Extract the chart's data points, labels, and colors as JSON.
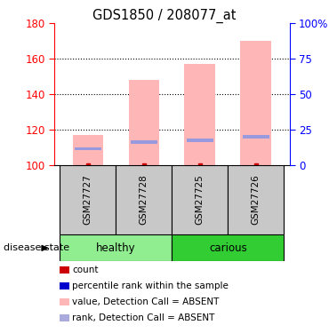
{
  "title": "GDS1850 / 208077_at",
  "samples": [
    "GSM27727",
    "GSM27728",
    "GSM27725",
    "GSM27726"
  ],
  "groups": [
    "healthy",
    "healthy",
    "carious",
    "carious"
  ],
  "group_colors": {
    "healthy": "#90EE90",
    "carious": "#32CD32"
  },
  "bar_values": [
    117,
    148,
    157,
    170
  ],
  "rank_values": [
    109,
    113,
    114,
    116
  ],
  "count_values": [
    100,
    100,
    100,
    100
  ],
  "bar_color": "#FFB6B6",
  "rank_color": "#9999DD",
  "count_color": "#CC0000",
  "ymin": 100,
  "ymax": 180,
  "yticks_left": [
    100,
    120,
    140,
    160,
    180
  ],
  "yticks_right": [
    0,
    25,
    50,
    75,
    100
  ],
  "yright_labels": [
    "0",
    "25",
    "50",
    "75",
    "100%"
  ],
  "background_color": "#ffffff",
  "legend_items": [
    "count",
    "percentile rank within the sample",
    "value, Detection Call = ABSENT",
    "rank, Detection Call = ABSENT"
  ],
  "legend_colors": [
    "#CC0000",
    "#0000CC",
    "#FFB6B6",
    "#AAAADD"
  ],
  "healthy_color": "#90EE90",
  "carious_color": "#32CD32",
  "label_bg": "#C8C8C8"
}
